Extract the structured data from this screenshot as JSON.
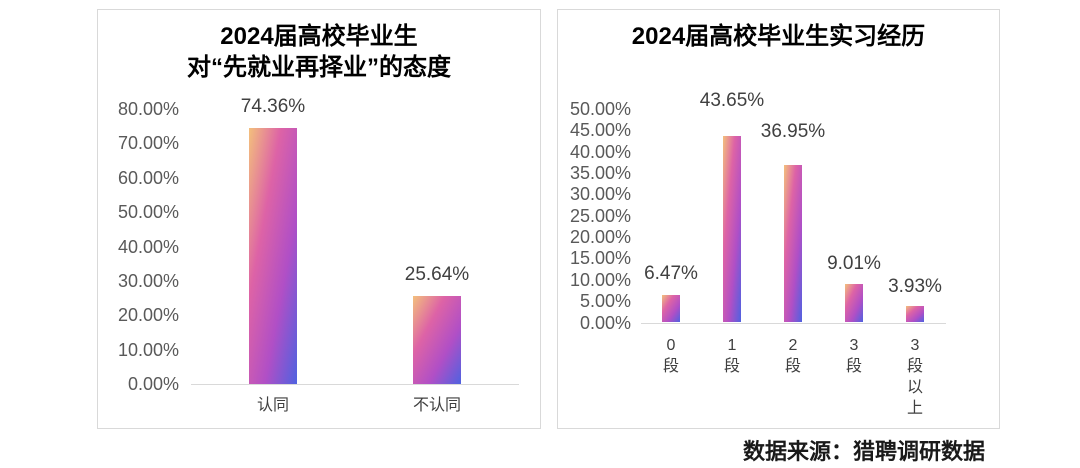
{
  "source": "数据来源：猎聘调研数据",
  "colors": {
    "bar_gradient": [
      "#f3c07c",
      "#dd63a6",
      "#b04fc6",
      "#4f62e0"
    ],
    "title": "#000000",
    "tick": "#595959",
    "label": "#404040",
    "border": "#d9d9d9",
    "source": "#1a1a1a"
  },
  "chart_data": [
    {
      "type": "bar",
      "title": "2024届高校毕业生\n对“先就业再择业”的态度",
      "categories": [
        "认同",
        "不认同"
      ],
      "values": [
        74.36,
        25.64
      ],
      "data_labels": [
        "74.36%",
        "25.64%"
      ],
      "ylim": [
        0,
        80
      ],
      "yticks": [
        0,
        10,
        20,
        30,
        40,
        50,
        60,
        70,
        80
      ],
      "ytick_labels": [
        "0.00%",
        "10.00%",
        "20.00%",
        "30.00%",
        "40.00%",
        "50.00%",
        "60.00%",
        "70.00%",
        "80.00%"
      ],
      "xlabel": "",
      "ylabel": "",
      "grid": false,
      "legend": "none"
    },
    {
      "type": "bar",
      "title": "2024届高校毕业生实习经历",
      "categories": [
        "0段",
        "1段",
        "2段",
        "3段",
        "3段以上"
      ],
      "values": [
        6.47,
        43.65,
        36.95,
        9.01,
        3.93
      ],
      "data_labels": [
        "6.47%",
        "43.65%",
        "36.95%",
        "9.01%",
        "3.93%"
      ],
      "ylim": [
        0,
        50
      ],
      "yticks": [
        0,
        5,
        10,
        15,
        20,
        25,
        30,
        35,
        40,
        45,
        50
      ],
      "ytick_labels": [
        "0.00%",
        "5.00%",
        "10.00%",
        "15.00%",
        "20.00%",
        "25.00%",
        "30.00%",
        "35.00%",
        "40.00%",
        "45.00%",
        "50.00%"
      ],
      "xlabel": "",
      "ylabel": "",
      "grid": false,
      "legend": "none"
    }
  ]
}
